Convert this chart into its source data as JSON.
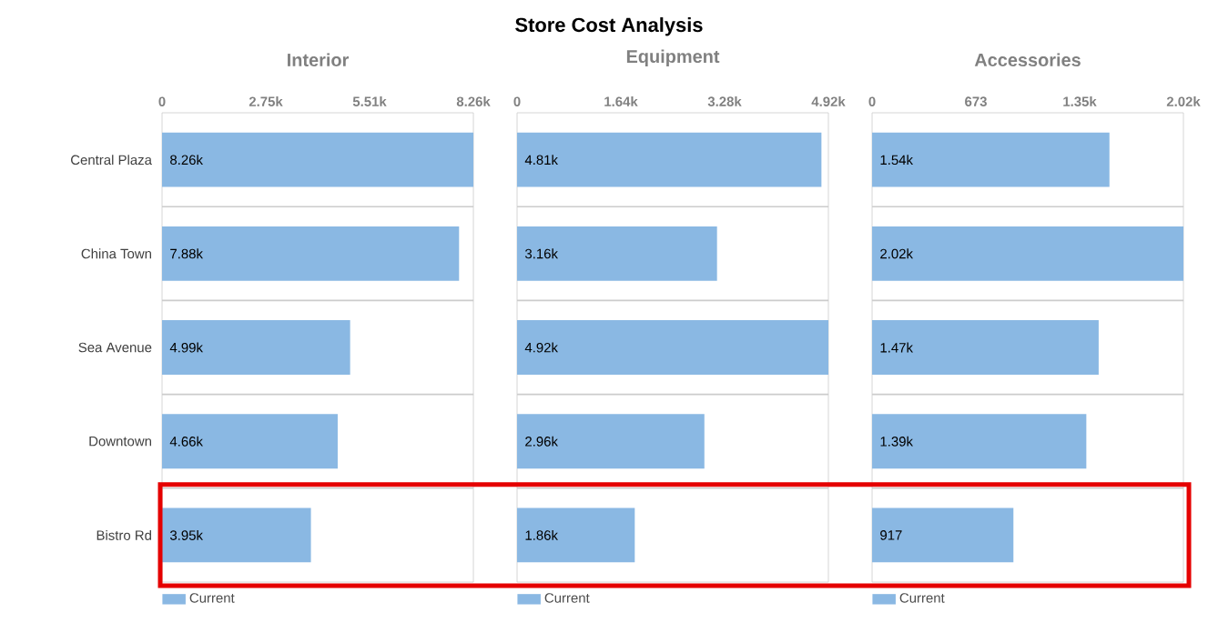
{
  "chart_data": [
    {
      "type": "other",
      "title": "Store Cost Analysis"
    },
    {
      "type": "bar",
      "orientation": "horizontal",
      "title": "Interior",
      "categories": [
        "Central Plaza",
        "China Town",
        "Sea Avenue",
        "Downtown",
        "Bistro Rd"
      ],
      "series": [
        {
          "name": "Current",
          "color": "#8ab8e3",
          "values": [
            8260,
            7880,
            4990,
            4660,
            3950
          ],
          "value_labels": [
            "8.26k",
            "7.88k",
            "4.99k",
            "4.66k",
            "3.95k"
          ]
        }
      ],
      "xlim": [
        0,
        8260
      ],
      "xticks": [
        0,
        {
          "value": 2753.33,
          "label": "2.75k"
        },
        {
          "value": 5506.67,
          "label": "5.51k"
        },
        {
          "value": 8260,
          "label": "8.26k"
        }
      ],
      "grid": "y",
      "legend": "bottom"
    },
    {
      "type": "bar",
      "orientation": "horizontal",
      "title": "Equipment",
      "categories": [
        null,
        null,
        null,
        null,
        null
      ],
      "series": [
        {
          "name": "Current",
          "color": "#8ab8e3",
          "values": [
            4810,
            3160,
            4920,
            2960,
            1860
          ],
          "value_labels": [
            "4.81k",
            "3.16k",
            "4.92k",
            "2.96k",
            "1.86k"
          ]
        }
      ],
      "xlim": [
        0,
        4920
      ],
      "xticks": [
        0,
        {
          "value": 1640,
          "label": "1.64k"
        },
        {
          "value": 3280,
          "label": "3.28k"
        },
        {
          "value": 4920,
          "label": "4.92k"
        }
      ],
      "grid": "y",
      "legend": "bottom",
      "tick_labels": "x"
    },
    {
      "type": "bar",
      "orientation": "horizontal",
      "title": "Accessories",
      "categories": [
        null,
        null,
        null,
        null,
        null
      ],
      "series": [
        {
          "name": "Current",
          "color": "#8ab8e3",
          "values": [
            1540,
            2020,
            1470,
            1390,
            917
          ],
          "value_labels": [
            "1.54k",
            "2.02k",
            "1.47k",
            "1.39k",
            "917"
          ]
        }
      ],
      "xlim": [
        0,
        2020
      ],
      "xticks": [
        0,
        {
          "value": 673.33,
          "label": "673"
        },
        {
          "value": 1346.67,
          "label": "1.35k"
        },
        {
          "value": 2020,
          "label": "2.02k"
        }
      ],
      "grid": "y",
      "legend": "bottom",
      "tick_labels": "x"
    }
  ]
}
